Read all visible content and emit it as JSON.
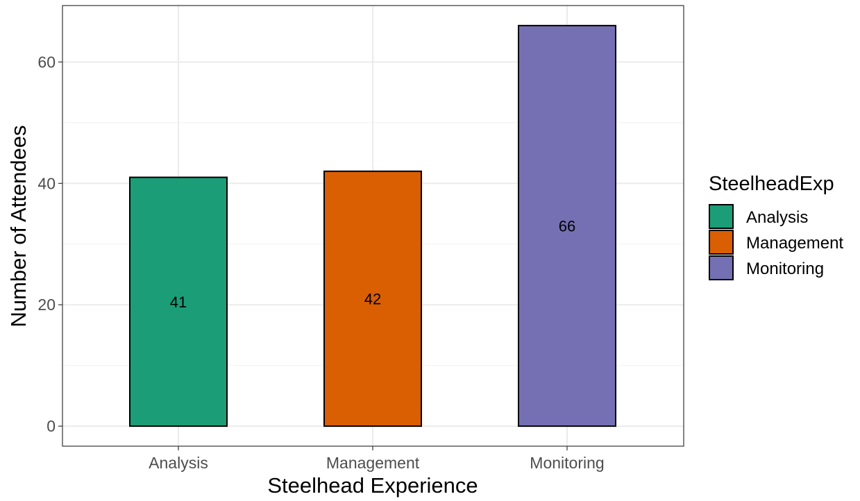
{
  "chart_data": {
    "type": "bar",
    "categories": [
      "Analysis",
      "Management",
      "Monitoring"
    ],
    "values": [
      41,
      42,
      66
    ],
    "data_labels": [
      "41",
      "42",
      "66"
    ],
    "colors": [
      "#1b9e77",
      "#d95f02",
      "#7570b3"
    ],
    "xlabel": "Steelhead Experience",
    "ylabel": "Number of Attendees",
    "ylim": [
      -3.3,
      69.3
    ],
    "yticks": [
      0,
      20,
      40,
      60
    ],
    "ytick_labels": [
      "0",
      "20",
      "40",
      "60"
    ],
    "grid": true,
    "legend": {
      "title": "SteelheadExp",
      "position": "right",
      "entries": [
        "Analysis",
        "Management",
        "Monitoring"
      ]
    }
  }
}
